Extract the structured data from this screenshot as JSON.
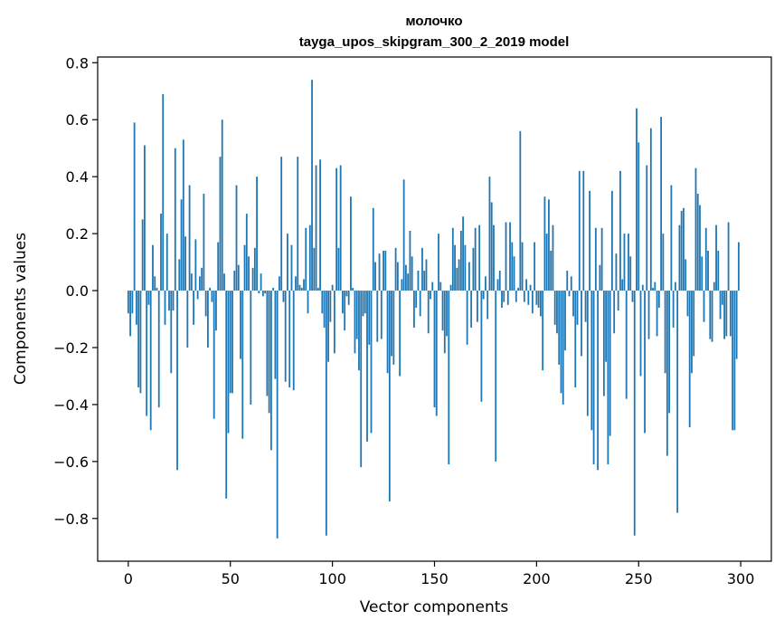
{
  "chart_data": {
    "type": "bar",
    "title": "молочко",
    "subtitle": "tayga_upos_skipgram_300_2_2019 model",
    "xlabel": "Vector components",
    "ylabel": "Components values",
    "xlim": [
      -15,
      315
    ],
    "ylim": [
      -0.95,
      0.82
    ],
    "xticks": [
      0,
      50,
      100,
      150,
      200,
      250,
      300
    ],
    "xtick_labels": [
      "0",
      "50",
      "100",
      "150",
      "200",
      "250",
      "300"
    ],
    "yticks": [
      -0.8,
      -0.6,
      -0.4,
      -0.2,
      0.0,
      0.2,
      0.4,
      0.6,
      0.8
    ],
    "ytick_labels": [
      "−0.8",
      "−0.6",
      "−0.4",
      "−0.2",
      "0.0",
      "0.2",
      "0.4",
      "0.6",
      "0.8"
    ],
    "bar_color": "#1f77b4",
    "values": [
      -0.08,
      -0.16,
      -0.08,
      0.59,
      -0.12,
      -0.34,
      -0.36,
      0.25,
      0.51,
      -0.44,
      -0.05,
      -0.49,
      0.16,
      0.05,
      0.01,
      -0.41,
      0.27,
      0.69,
      -0.12,
      0.2,
      -0.07,
      -0.29,
      -0.07,
      0.5,
      -0.63,
      0.11,
      0.32,
      0.53,
      0.19,
      -0.2,
      0.37,
      0.06,
      -0.12,
      0.18,
      -0.03,
      0.05,
      0.08,
      0.34,
      -0.09,
      -0.2,
      0.01,
      -0.04,
      -0.45,
      -0.14,
      0.17,
      0.47,
      0.6,
      0.06,
      -0.73,
      -0.5,
      -0.36,
      -0.36,
      0.07,
      0.37,
      0.09,
      -0.24,
      -0.52,
      0.16,
      0.27,
      0.12,
      -0.4,
      0.08,
      0.15,
      0.4,
      -0.01,
      0.06,
      -0.02,
      -0.01,
      -0.37,
      -0.43,
      -0.56,
      0.01,
      -0.31,
      -0.87,
      0.05,
      0.47,
      -0.04,
      -0.32,
      0.2,
      -0.34,
      0.16,
      -0.35,
      0.05,
      0.47,
      0.02,
      0.01,
      0.04,
      0.22,
      -0.08,
      0.23,
      0.74,
      0.15,
      0.44,
      0.01,
      0.46,
      -0.08,
      -0.13,
      -0.86,
      -0.25,
      -0.11,
      0.02,
      -0.22,
      0.43,
      0.15,
      0.44,
      -0.08,
      -0.14,
      -0.02,
      -0.05,
      0.33,
      0.01,
      -0.22,
      -0.17,
      -0.28,
      -0.62,
      -0.09,
      -0.08,
      -0.53,
      -0.19,
      -0.5,
      0.29,
      0.1,
      -0.18,
      0.13,
      -0.17,
      0.14,
      0.14,
      -0.29,
      -0.74,
      -0.23,
      -0.26,
      0.15,
      0.1,
      -0.3,
      0.04,
      0.39,
      0.09,
      0.06,
      0.21,
      0.12,
      -0.13,
      -0.06,
      0.07,
      -0.09,
      0.15,
      0.07,
      0.11,
      -0.15,
      -0.03,
      0.03,
      -0.41,
      -0.44,
      0.2,
      0.03,
      -0.14,
      -0.22,
      -0.16,
      -0.61,
      0.02,
      0.22,
      0.16,
      0.08,
      0.11,
      0.21,
      0.26,
      0.16,
      -0.19,
      0.1,
      -0.13,
      0.15,
      0.22,
      -0.11,
      0.23,
      -0.39,
      -0.03,
      0.05,
      -0.1,
      0.4,
      0.31,
      0.23,
      -0.6,
      0.04,
      0.07,
      -0.06,
      -0.04,
      0.24,
      -0.05,
      0.24,
      0.17,
      0.12,
      -0.04,
      0.01,
      0.56,
      0.17,
      -0.04,
      0.04,
      -0.05,
      0.02,
      -0.08,
      0.17,
      -0.05,
      -0.06,
      -0.09,
      -0.28,
      0.33,
      0.2,
      0.32,
      0.14,
      0.23,
      -0.12,
      -0.15,
      -0.26,
      -0.36,
      -0.4,
      -0.21,
      0.07,
      -0.02,
      0.05,
      -0.09,
      -0.34,
      -0.12,
      0.42,
      -0.23,
      0.42,
      -0.11,
      -0.44,
      0.35,
      -0.49,
      -0.61,
      0.22,
      -0.63,
      0.09,
      0.22,
      -0.37,
      -0.25,
      -0.61,
      -0.51,
      0.35,
      -0.15,
      0.13,
      -0.07,
      0.42,
      0.04,
      0.2,
      -0.38,
      0.2,
      0.12,
      -0.04,
      -0.86,
      0.64,
      0.52,
      -0.3,
      0.02,
      -0.5,
      0.44,
      -0.17,
      0.57,
      0.01,
      0.03,
      -0.16,
      -0.06,
      0.61,
      0.2,
      -0.29,
      -0.58,
      -0.43,
      0.37,
      -0.13,
      0.03,
      -0.78,
      0.23,
      0.28,
      0.29,
      0.11,
      -0.09,
      -0.48,
      -0.29,
      -0.23,
      0.43,
      0.34,
      0.3,
      0.12,
      -0.11,
      0.22,
      0.14,
      -0.17,
      -0.18,
      0.03,
      0.23,
      0.14,
      -0.1,
      -0.05,
      -0.17,
      -0.16,
      0.24,
      -0.16,
      -0.49,
      -0.49,
      -0.24,
      0.17
    ]
  }
}
